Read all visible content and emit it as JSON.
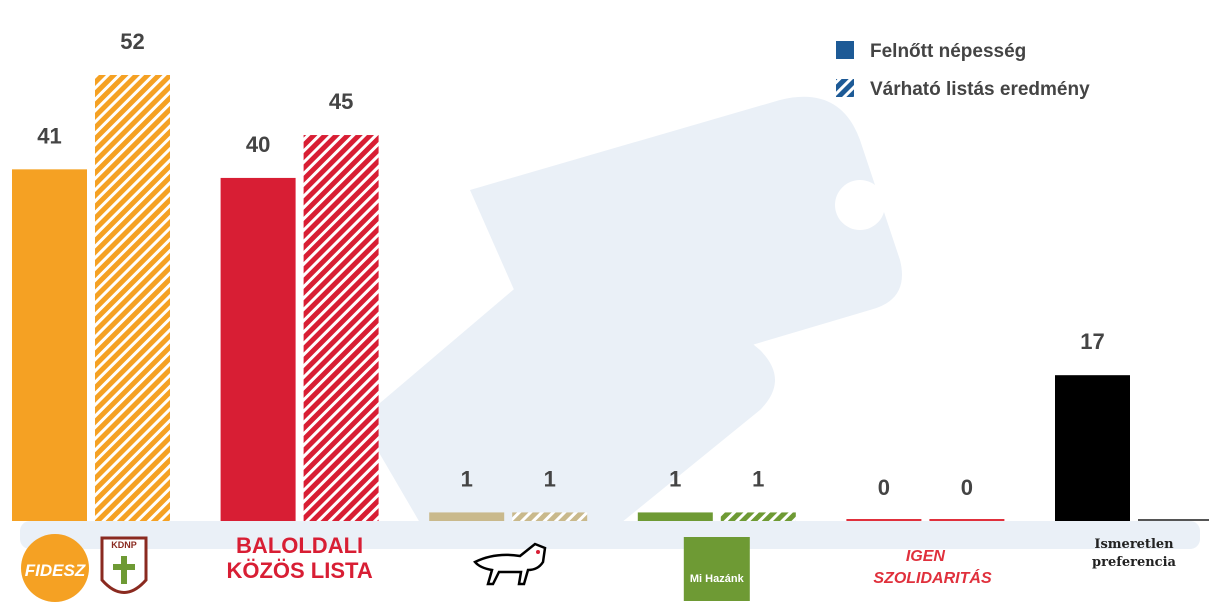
{
  "chart_data": {
    "type": "bar",
    "categories": [
      "FIDESZ",
      "BALOLDALI KÖZÖS LISTA",
      null,
      "Mi Hazánk",
      "IGEN SZOLIDARITÁS",
      "Ismeretlen preferencia"
    ],
    "category_colors": [
      "#f5a123",
      "#d81e34",
      "#c9b98c",
      "#6e9a34",
      "#e0303c",
      "#000000"
    ],
    "series": [
      {
        "name": "Felnőtt népesség",
        "color": "#1d5a96",
        "hatch": false,
        "values": [
          41,
          40,
          1,
          1,
          0,
          17
        ]
      },
      {
        "name": "Várható listás eredmény",
        "color": "#1d5a96",
        "hatch": true,
        "values": [
          52,
          45,
          1,
          1,
          0,
          0
        ]
      }
    ],
    "annotations": [
      "KDNP"
    ],
    "legend": "top-right"
  }
}
